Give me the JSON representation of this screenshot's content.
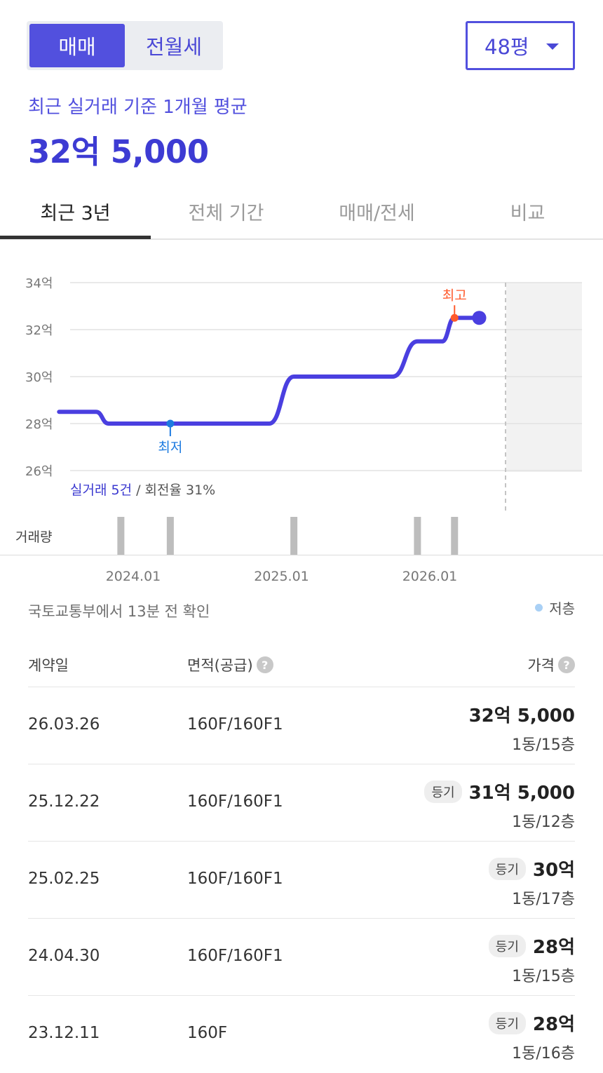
{
  "segment": {
    "sale": "매매",
    "lease": "전월세"
  },
  "size_select": {
    "value": "48평"
  },
  "summary": {
    "subtitle": "최근 실거래 기준 1개월 평균",
    "price": "32억 5,000"
  },
  "tabs": [
    "최근 3년",
    "전체 기간",
    "매매/전세",
    "비교"
  ],
  "chart_data": {
    "type": "line",
    "y_unit": "억",
    "ylim": [
      26,
      34
    ],
    "y_ticks": [
      "34억",
      "32억",
      "30억",
      "28억",
      "26억"
    ],
    "x_ticks": [
      "2024.01",
      "2025.01",
      "2026.01"
    ],
    "series": [
      {
        "values": [
          {
            "date": "2023.07",
            "y": 28.5
          },
          {
            "date": "2023.10",
            "y": 28.5
          },
          {
            "date": "2023.11",
            "y": 28.0
          },
          {
            "date": "2024.04",
            "y": 28.0
          },
          {
            "date": "2024.12",
            "y": 28.0
          },
          {
            "date": "2025.02",
            "y": 30.0
          },
          {
            "date": "2025.10",
            "y": 30.0
          },
          {
            "date": "2025.12",
            "y": 31.5
          },
          {
            "date": "2026.02",
            "y": 31.5
          },
          {
            "date": "2026.03",
            "y": 32.5
          },
          {
            "date": "2026.05",
            "y": 32.5
          }
        ]
      }
    ],
    "annotations": {
      "max_label": "최고",
      "min_label": "최저"
    },
    "volume_label": "거래량",
    "volume_bars": [
      "2023.12",
      "2024.04",
      "2025.02",
      "2025.12",
      "2026.03"
    ],
    "trade_count": "실거래 5건",
    "turnover": "/ 회전율 31%",
    "colors": {
      "line": "#4a3fe0",
      "max": "#ff5a2c",
      "min": "#1e7be0",
      "volume": "#bdbdbd"
    }
  },
  "source_note": "국토교통부에서 13분 전 확인",
  "legend_label": "저층",
  "table": {
    "headers": {
      "date": "계약일",
      "area": "면적(공급)",
      "price": "가격"
    },
    "rows": [
      {
        "date": "26.03.26",
        "area": "160F/160F1",
        "badge": "",
        "price": "32억 5,000",
        "floor": "1동/15층"
      },
      {
        "date": "25.12.22",
        "area": "160F/160F1",
        "badge": "등기",
        "price": "31억 5,000",
        "floor": "1동/12층"
      },
      {
        "date": "25.02.25",
        "area": "160F/160F1",
        "badge": "등기",
        "price": "30억",
        "floor": "1동/17층"
      },
      {
        "date": "24.04.30",
        "area": "160F/160F1",
        "badge": "등기",
        "price": "28억",
        "floor": "1동/15층"
      },
      {
        "date": "23.12.11",
        "area": "160F",
        "badge": "등기",
        "price": "28억",
        "floor": "1동/16층"
      }
    ]
  }
}
